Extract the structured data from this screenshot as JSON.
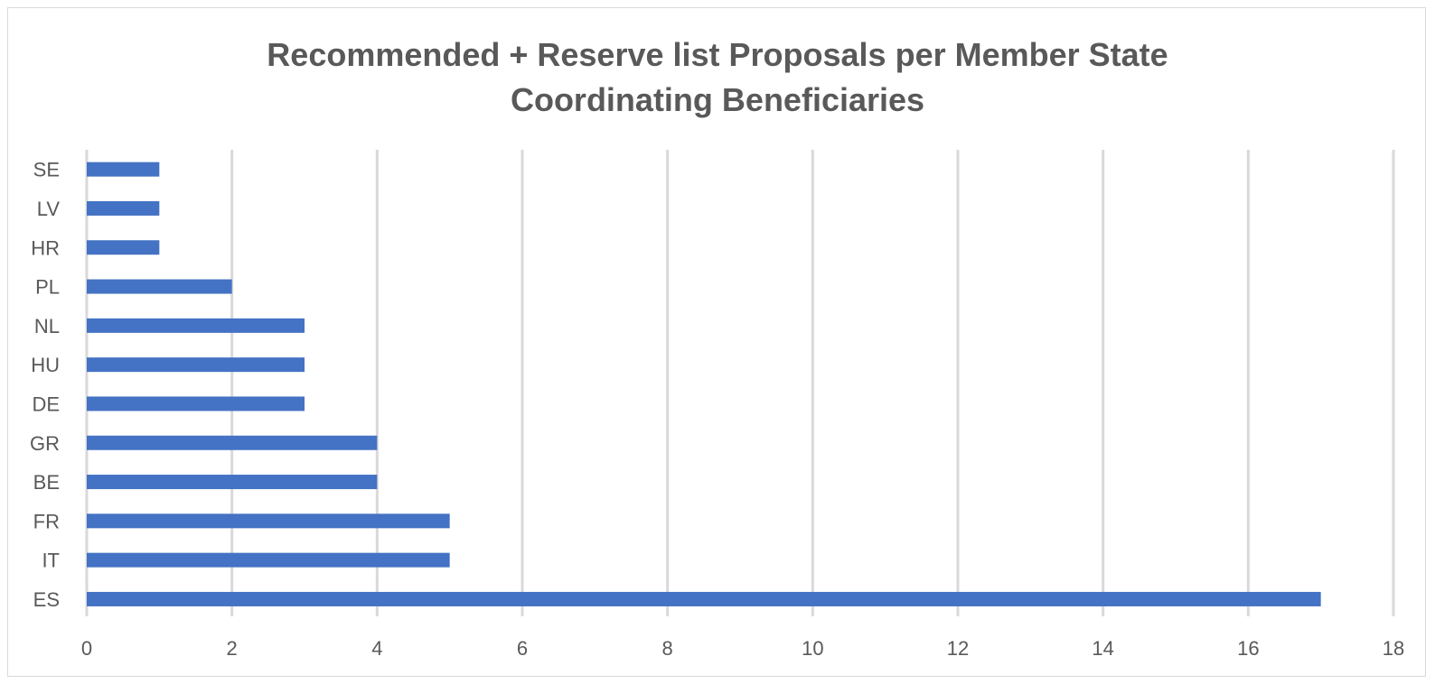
{
  "chart_data": {
    "type": "bar",
    "orientation": "horizontal",
    "title_lines": [
      "Recommended + Reserve list Proposals per Member State",
      "Coordinating Beneficiaries"
    ],
    "categories": [
      "SE",
      "LV",
      "HR",
      "PL",
      "NL",
      "HU",
      "DE",
      "GR",
      "BE",
      "FR",
      "IT",
      "ES"
    ],
    "values": [
      1,
      1,
      1,
      2,
      3,
      3,
      3,
      4,
      4,
      5,
      5,
      17
    ],
    "xlim": [
      0,
      18
    ],
    "xticks": [
      0,
      2,
      4,
      6,
      8,
      10,
      12,
      14,
      16,
      18
    ],
    "grid": "vertical",
    "bar_color": "#4472c4",
    "grid_color": "#d9d9d9",
    "text_color": "#595959"
  }
}
